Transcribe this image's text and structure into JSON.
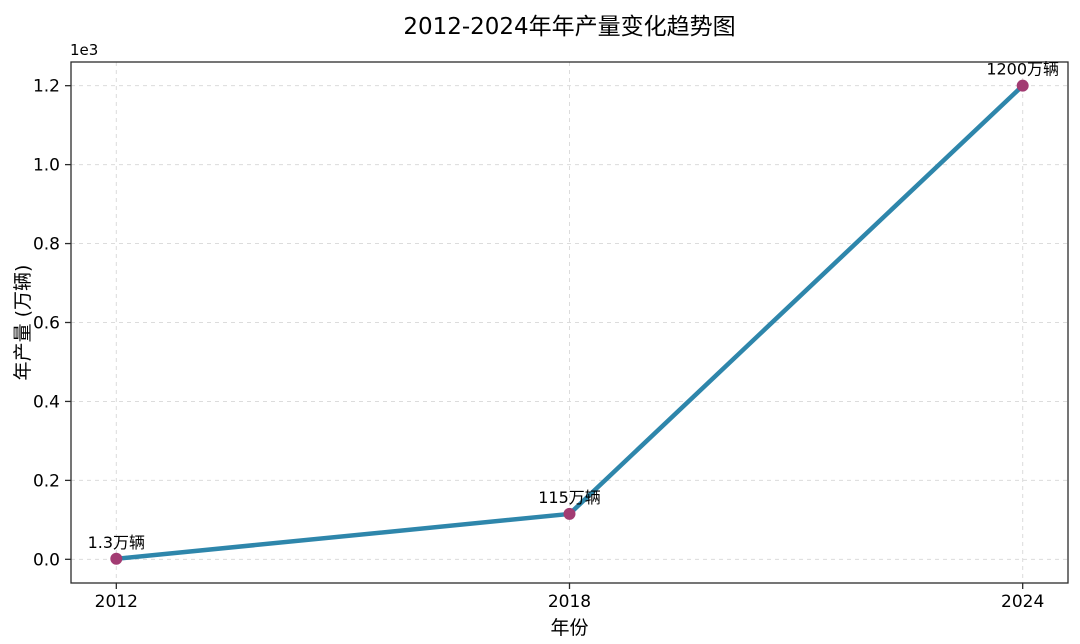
{
  "figure": {
    "background": "#ffffff"
  },
  "chart_data": {
    "type": "line",
    "title": "2012-2024年年产量变化趋势图",
    "xlabel": "年份",
    "ylabel": "年产量 (万辆)",
    "y_offset_label": "1e3",
    "x": [
      2012,
      2018,
      2024
    ],
    "values": [
      1.3,
      115,
      1200
    ],
    "annotations": [
      "1.3万辆",
      "115万辆",
      "1200万辆"
    ],
    "xticks": [
      2012,
      2018,
      2024
    ],
    "xtick_labels": [
      "2012",
      "2018",
      "2024"
    ],
    "ytick_values": [
      0,
      200,
      400,
      600,
      800,
      1000,
      1200
    ],
    "ytick_labels": [
      "0.0",
      "0.2",
      "0.4",
      "0.6",
      "0.8",
      "1.0",
      "1.2"
    ],
    "xlim": [
      2011.4,
      2024.6
    ],
    "ylim": [
      -60,
      1260
    ],
    "grid": true,
    "grid_style": "dashed",
    "legend": "none",
    "line_color": "#2E86AB",
    "marker_color": "#A23B72",
    "grid_color": "#dcdcdc",
    "spine_color": "#2b2b2b",
    "text_color": "#000000"
  }
}
